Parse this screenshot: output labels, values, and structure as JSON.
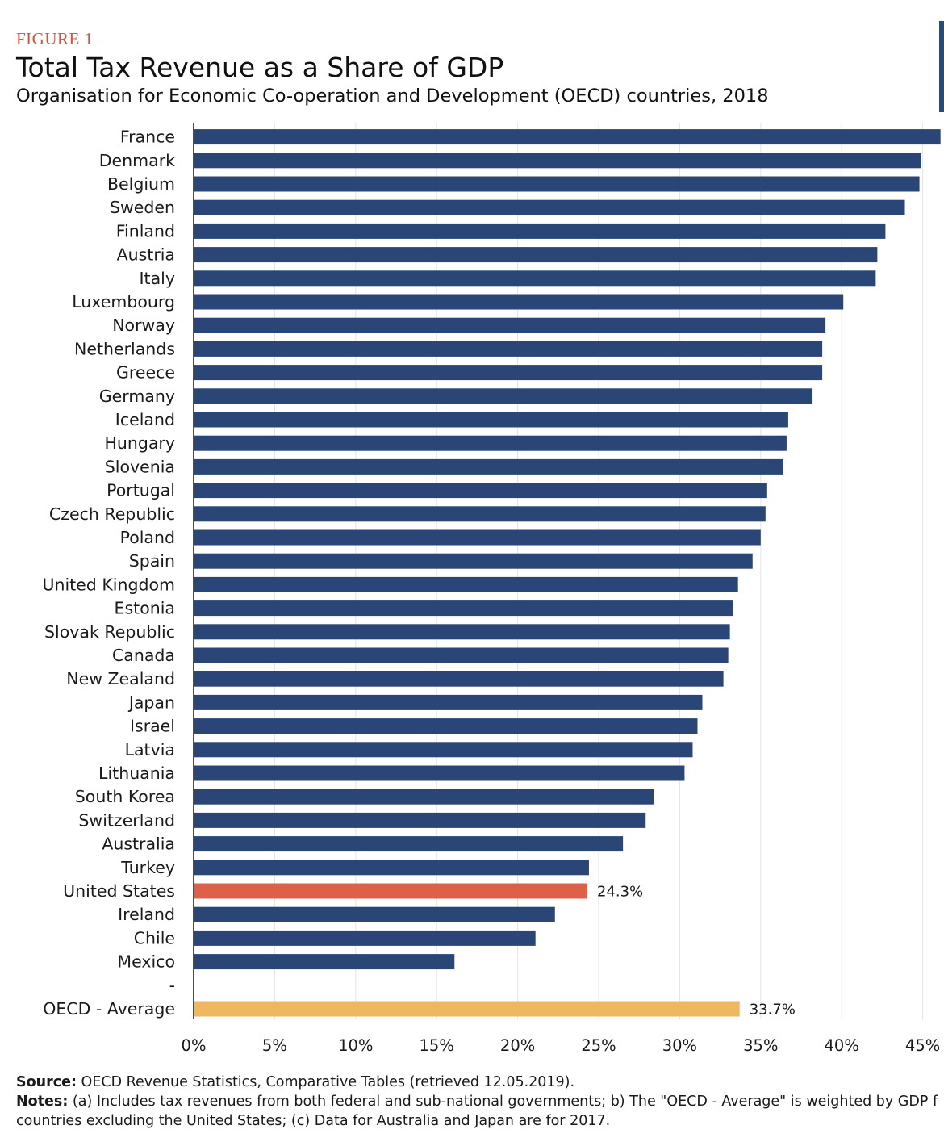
{
  "figure_label": "FIGURE 1",
  "title": "Total Tax Revenue as a Share of GDP",
  "subtitle": "Organisation for Economic Co-operation and Development (OECD) countries, 2018",
  "chart_data": {
    "type": "bar",
    "orientation": "horizontal",
    "categories": [
      "France",
      "Denmark",
      "Belgium",
      "Sweden",
      "Finland",
      "Austria",
      "Italy",
      "Luxembourg",
      "Norway",
      "Netherlands",
      "Greece",
      "Germany",
      "Iceland",
      "Hungary",
      "Slovenia",
      "Portugal",
      "Czech Republic",
      "Poland",
      "Spain",
      "United Kingdom",
      "Estonia",
      "Slovak Republic",
      "Canada",
      "New Zealand",
      "Japan",
      "Israel",
      "Latvia",
      "Lithuania",
      "South Korea",
      "Switzerland",
      "Australia",
      "Turkey",
      "United States",
      "Ireland",
      "Chile",
      "Mexico",
      "-",
      "OECD - Average"
    ],
    "values": [
      46.1,
      44.9,
      44.8,
      43.9,
      42.7,
      42.2,
      42.1,
      40.1,
      39.0,
      38.8,
      38.8,
      38.2,
      36.7,
      36.6,
      36.4,
      35.4,
      35.3,
      35.0,
      34.5,
      33.6,
      33.3,
      33.1,
      33.0,
      32.7,
      31.4,
      31.1,
      30.8,
      30.3,
      28.4,
      27.9,
      26.5,
      24.4,
      24.3,
      22.3,
      21.1,
      16.1,
      null,
      33.7
    ],
    "highlight": {
      "United States": "#dc6148",
      "OECD - Average": "#efb760"
    },
    "bar_color": "#2a4677",
    "data_labels": [
      {
        "category": "United States",
        "text": "24.3%"
      },
      {
        "category": "OECD - Average",
        "text": "33.7%"
      }
    ],
    "x_ticks": [
      "0%",
      "5%",
      "10%",
      "15%",
      "20%",
      "25%",
      "30%",
      "35%",
      "40%",
      "45%"
    ],
    "xlim": [
      0,
      46.2
    ],
    "grid": true
  },
  "footnotes": {
    "source_label": "Source:",
    "source_text": "OECD Revenue Statistics, Comparative Tables (retrieved 12.05.2019).",
    "notes_label": "Notes:",
    "notes_line1": "(a) Includes tax revenues from both federal and sub-national governments; b) The \"OECD - Average\" is weighted by GDP f",
    "notes_line2": "countries excluding the United States; (c) Data for Australia and Japan are for 2017."
  }
}
